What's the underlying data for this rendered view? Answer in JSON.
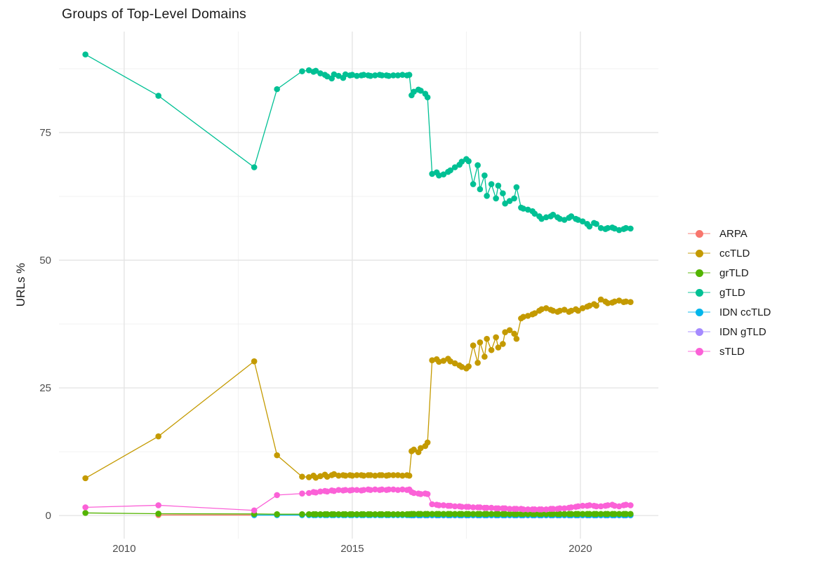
{
  "chart_data": {
    "type": "line",
    "title": "Groups of Top-Level Domains",
    "xlabel": "",
    "ylabel": "URLs %",
    "grid": "on",
    "x_axis": {
      "domain": [
        2008.57,
        2021.71
      ],
      "major_ticks": [
        {
          "value": 2010,
          "label": "2010"
        },
        {
          "value": 2015,
          "label": "2015"
        },
        {
          "value": 2020,
          "label": "2020"
        }
      ],
      "minor_ticks": [
        2012.5,
        2017.5
      ]
    },
    "y_axis": {
      "domain": [
        -4.53,
        94.78
      ],
      "major_ticks": [
        {
          "value": 0,
          "label": "0"
        },
        {
          "value": 25,
          "label": "25"
        },
        {
          "value": 50,
          "label": "50"
        },
        {
          "value": 75,
          "label": "75"
        }
      ],
      "minor_ticks": [
        12.5,
        37.5,
        62.5,
        87.5
      ]
    },
    "colors": {
      "major_grid": "#e5e5e5",
      "minor_grid": "#f0f0f0",
      "tick_text": "#4d4d4d"
    },
    "legend": {
      "position": "right",
      "entries": [
        {
          "label": "ARPA",
          "color": "#F8766D"
        },
        {
          "label": "ccTLD",
          "color": "#C49A00"
        },
        {
          "label": "grTLD",
          "color": "#53B400"
        },
        {
          "label": "gTLD",
          "color": "#00C094"
        },
        {
          "label": "IDN ccTLD",
          "color": "#00B6EB"
        },
        {
          "label": "IDN gTLD",
          "color": "#A58AFF"
        },
        {
          "label": "sTLD",
          "color": "#FB61D7"
        }
      ]
    },
    "x_groups": {
      "early": [
        2009.15,
        2010.75,
        2012.85,
        2013.35,
        2013.9
      ],
      "lateEarly": [
        2012.85,
        2013.35,
        2013.9
      ],
      "denseA": [
        2014.05,
        2014.15,
        2014.2,
        2014.3,
        2014.4,
        2014.45,
        2014.55,
        2014.6,
        2014.7,
        2014.8,
        2014.85,
        2014.95,
        2015.0,
        2015.1,
        2015.2,
        2015.25,
        2015.35,
        2015.4,
        2015.5,
        2015.6,
        2015.65,
        2015.75,
        2015.8,
        2015.9,
        2016.0,
        2016.1,
        2016.2,
        2016.25
      ],
      "denseB": [
        2016.3,
        2016.35,
        2016.45,
        2016.5,
        2016.6,
        2016.65
      ],
      "denseC": [
        2016.75,
        2016.85,
        2016.9,
        2017.0,
        2017.1,
        2017.15,
        2017.25,
        2017.35,
        2017.4,
        2017.5,
        2017.55,
        2017.65,
        2017.75,
        2017.8,
        2017.9,
        2017.95,
        2018.05,
        2018.15,
        2018.2,
        2018.3,
        2018.35,
        2018.45,
        2018.55,
        2018.6,
        2018.7,
        2018.75,
        2018.85,
        2018.95,
        2019.0,
        2019.1,
        2019.15,
        2019.25,
        2019.35,
        2019.4,
        2019.5,
        2019.55,
        2019.65,
        2019.75,
        2019.8,
        2019.9,
        2019.95,
        2020.05,
        2020.15,
        2020.2,
        2020.3,
        2020.35,
        2020.45,
        2020.55,
        2020.6,
        2020.7,
        2020.75,
        2020.85,
        2020.95,
        2021.0,
        2021.1
      ]
    },
    "series": [
      {
        "name": "ARPA",
        "color": "#F8766D",
        "x": [
          2010.75,
          2012.85
        ],
        "values": [
          0.1,
          0.08
        ]
      },
      {
        "name": "IDN gTLD",
        "color": "#A58AFF",
        "x_segments": [
          "denseB",
          "denseC"
        ],
        "const": 0.02
      },
      {
        "name": "IDN ccTLD",
        "color": "#00B6EB",
        "x_segments": [
          "lateEarly",
          "denseA",
          "denseB",
          "denseC"
        ],
        "const": 0.08
      },
      {
        "name": "grTLD",
        "color": "#53B400",
        "x_segments": [
          "early",
          "denseA",
          "denseB",
          "denseC"
        ],
        "values": [
          0.5,
          0.35,
          0.3,
          0.25,
          0.25,
          0.25,
          0.25,
          0.25,
          0.25,
          0.25,
          0.25,
          0.25,
          0.25,
          0.25,
          0.25,
          0.25,
          0.25,
          0.25,
          0.25,
          0.25,
          0.25,
          0.25,
          0.25,
          0.25,
          0.25,
          0.25,
          0.25,
          0.25,
          0.25,
          0.25,
          0.25,
          0.25,
          0.25,
          0.3,
          0.3,
          0.3,
          0.3,
          0.3,
          0.3,
          0.3,
          0.3,
          0.3,
          0.3,
          0.3,
          0.3,
          0.3,
          0.3,
          0.3,
          0.3,
          0.3,
          0.3,
          0.3,
          0.3,
          0.3,
          0.3,
          0.3,
          0.3,
          0.3,
          0.3,
          0.3,
          0.3,
          0.3,
          0.3,
          0.3,
          0.3,
          0.3,
          0.3,
          0.3,
          0.3,
          0.3,
          0.3,
          0.3,
          0.3,
          0.3,
          0.3,
          0.3,
          0.3,
          0.3,
          0.3,
          0.3,
          0.3,
          0.3,
          0.3,
          0.3,
          0.3,
          0.3,
          0.3,
          0.3,
          0.3,
          0.3,
          0.3,
          0.3,
          0.3,
          0.3
        ]
      },
      {
        "name": "ccTLD",
        "color": "#C49A00",
        "x_segments": [
          "early",
          "denseA",
          "denseB",
          "denseC"
        ],
        "values": [
          7.3,
          15.5,
          30.2,
          11.8,
          7.6,
          7.5,
          7.8,
          7.4,
          7.7,
          8.0,
          7.6,
          7.9,
          8.1,
          7.8,
          7.9,
          7.8,
          7.9,
          7.8,
          7.9,
          7.9,
          7.8,
          7.9,
          7.9,
          7.8,
          7.9,
          7.9,
          7.8,
          7.9,
          7.9,
          7.9,
          7.8,
          7.9,
          7.8,
          12.6,
          12.9,
          12.4,
          13.2,
          13.6,
          14.3,
          30.4,
          30.6,
          30.1,
          30.3,
          30.7,
          30.2,
          29.8,
          29.4,
          29.1,
          28.8,
          29.2,
          33.3,
          29.9,
          33.9,
          31.1,
          34.6,
          32.4,
          34.9,
          32.9,
          33.6,
          35.9,
          36.3,
          35.6,
          34.6,
          38.6,
          38.9,
          39.1,
          39.4,
          39.6,
          40.1,
          40.4,
          40.6,
          40.3,
          40.1,
          39.9,
          40.1,
          40.3,
          39.9,
          40.1,
          40.4,
          40.1,
          40.6,
          40.9,
          41.1,
          41.4,
          41.1,
          42.3,
          41.9,
          41.6,
          41.7,
          41.9,
          42.1,
          41.8,
          41.9,
          41.8
        ]
      },
      {
        "name": "gTLD",
        "color": "#00C094",
        "x_segments": [
          "early",
          "denseA",
          "denseB",
          "denseC"
        ],
        "values": [
          90.3,
          82.2,
          68.2,
          83.5,
          87.0,
          87.2,
          86.9,
          87.1,
          86.6,
          86.3,
          86.0,
          85.6,
          86.4,
          86.1,
          85.7,
          86.4,
          86.2,
          86.3,
          86.1,
          86.2,
          86.3,
          86.2,
          86.1,
          86.2,
          86.3,
          86.2,
          86.2,
          86.1,
          86.2,
          86.2,
          86.3,
          86.2,
          86.3,
          82.3,
          83.0,
          83.4,
          83.2,
          82.6,
          81.9,
          66.9,
          67.2,
          66.6,
          66.8,
          67.3,
          67.6,
          68.2,
          68.7,
          69.3,
          69.8,
          69.4,
          64.9,
          68.6,
          63.9,
          66.6,
          62.6,
          64.9,
          62.1,
          64.6,
          63.1,
          61.1,
          61.6,
          62.1,
          64.3,
          60.3,
          60.1,
          59.9,
          59.6,
          59.1,
          58.6,
          58.1,
          58.4,
          58.6,
          58.9,
          58.4,
          58.1,
          57.9,
          58.3,
          58.6,
          58.1,
          57.9,
          57.6,
          57.1,
          56.6,
          57.3,
          57.1,
          56.3,
          56.1,
          56.3,
          56.4,
          56.2,
          55.9,
          56.1,
          56.3,
          56.2
        ]
      },
      {
        "name": "sTLD",
        "color": "#FB61D7",
        "x_segments": [
          "early",
          "denseA",
          "denseB",
          "denseC"
        ],
        "values": [
          1.6,
          2.0,
          1.0,
          4.0,
          4.3,
          4.4,
          4.6,
          4.5,
          4.7,
          4.8,
          4.7,
          4.9,
          4.8,
          5.0,
          4.9,
          5.0,
          4.9,
          5.0,
          5.0,
          4.9,
          5.0,
          5.1,
          5.0,
          5.1,
          5.0,
          5.1,
          5.0,
          5.1,
          5.1,
          5.0,
          5.1,
          5.0,
          5.1,
          4.6,
          4.4,
          4.3,
          4.2,
          4.3,
          4.2,
          2.2,
          2.1,
          2.0,
          2.0,
          1.9,
          1.9,
          1.8,
          1.8,
          1.7,
          1.7,
          1.7,
          1.6,
          1.6,
          1.6,
          1.5,
          1.5,
          1.5,
          1.4,
          1.4,
          1.4,
          1.4,
          1.3,
          1.3,
          1.3,
          1.3,
          1.2,
          1.2,
          1.2,
          1.2,
          1.2,
          1.2,
          1.2,
          1.3,
          1.3,
          1.3,
          1.4,
          1.4,
          1.5,
          1.6,
          1.7,
          1.8,
          1.9,
          1.9,
          2.0,
          1.9,
          1.8,
          1.8,
          1.9,
          2.0,
          2.1,
          1.9,
          1.8,
          2.0,
          2.1,
          2.0
        ]
      }
    ]
  }
}
